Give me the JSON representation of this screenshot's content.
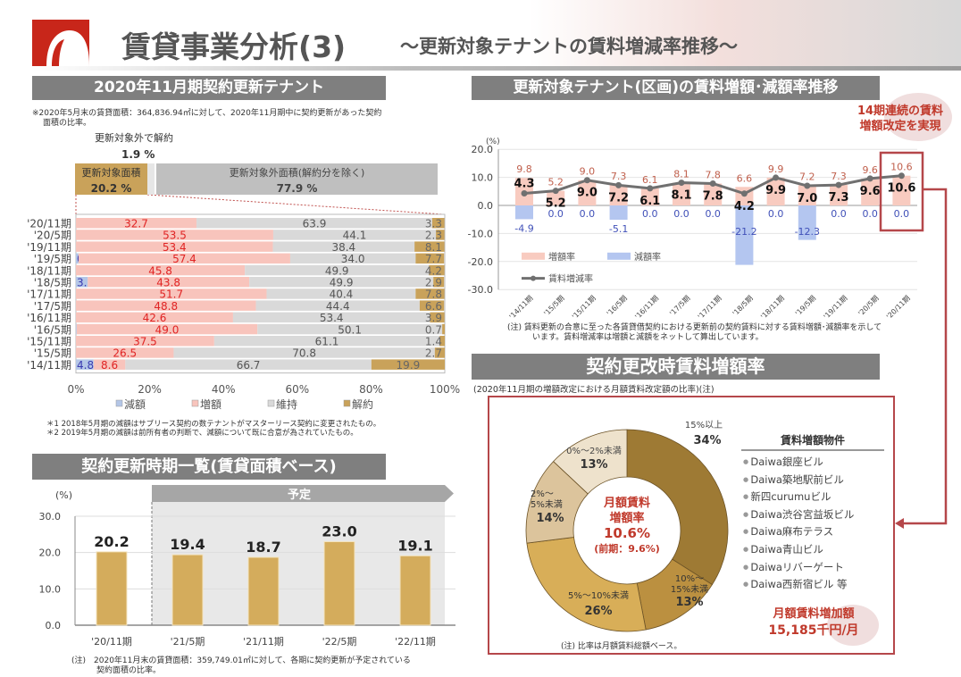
{
  "header": {
    "title": "賃貸事業分析(3)",
    "subtitle": "～更新対象テナントの賃料増減率推移～",
    "logo_color": "#c8261a"
  },
  "section_renewal": {
    "title": "2020年11月期契約更新テナント",
    "note_line1": "※2020年5月末の賃貸面積：364,836.94㎡に対して、2020年11月期中に契約更新があった契約",
    "note_line2": "面積の比率。",
    "cancel_label": "更新対象外で解約",
    "cancel_value": "1.9 %",
    "target_label": "更新対象面積",
    "target_value": "20.2 %",
    "other_label": "更新対象外面積(解約分を除く)",
    "other_value": "77.9 %",
    "footnote1": "＊1 2018年5月期の減額はサブリース契約の数テナントがマスターリース契約に変更されたもの。",
    "footnote2": "＊2 2019年5月期の減額は前所有者の判断で、減額について既に合意が為されていたもの。"
  },
  "section_trend": {
    "title": "更新対象テナント(区画)の賃料増額･減額率推移",
    "highlight_line1": "14期連続の賃料",
    "highlight_line2": "増額改定を実現",
    "note_line1": "(注) 賃料更新の合意に至った各賃貸借契約における更新前の契約賃料に対する賃料増額･減額率を示して",
    "note_line2": "います。賃料増減率は増額と減額をネットして算出しています。"
  },
  "section_schedule": {
    "title": "契約更新時期一覧(賃貸面積ベース)",
    "planned_label": "予定",
    "note_line1": "(注)　2020年11月末の賃貸面積：359,749.01㎡に対して、各期に契約更新が予定されている",
    "note_line2": "契約面積の比率。"
  },
  "section_increase": {
    "title": "契約更改時賃料増額率",
    "subtitle": "(2020年11月期の増額改定における月額賃料改定額の比率)(注)",
    "center_line1": "月額賃料",
    "center_line2": "増額率",
    "center_value": "10.6%",
    "center_prev": "(前期：9.6%)",
    "list_title": "賃料増額物件",
    "properties": [
      "Daiwa銀座ビル",
      "Daiwa築地駅前ビル",
      "新四curumuビル",
      "Daiwa渋谷宮益坂ビル",
      "Daiwa麻布テラス",
      "Daiwa青山ビル",
      "Daiwaリバーゲート",
      "Daiwa西新宿ビル 等"
    ],
    "amount_label": "月額賃料増加額",
    "amount_value": "15,185千円/月",
    "note": "(注) 比率は月額賃料総額ベース。"
  },
  "chart_data": [
    {
      "type": "bar",
      "orientation": "horizontal",
      "stacked": "percent",
      "categories": [
        "'20/11期",
        "'20/5期",
        "'19/11期",
        "'19/5期",
        "'18/11期",
        "'18/5期",
        "'17/11期",
        "'17/5期",
        "'16/11期",
        "'16/5期",
        "'15/11期",
        "'15/5期",
        "'14/11期"
      ],
      "series": [
        {
          "name": "減額",
          "color": "#b4c6e7",
          "label_color": "#3a3ab0",
          "values": [
            0,
            0,
            0,
            0.7,
            0,
            3.2,
            0,
            0,
            0,
            0.2,
            0,
            0,
            4.8
          ]
        },
        {
          "name": "増額",
          "color": "#f8c4bc",
          "label_color": "#e02424",
          "values": [
            32.7,
            53.5,
            53.4,
            57.4,
            45.8,
            43.8,
            51.7,
            48.8,
            42.6,
            49.0,
            37.5,
            26.5,
            8.6
          ]
        },
        {
          "name": "維持",
          "color": "#d9d9d9",
          "label_color": "#555555",
          "values": [
            63.9,
            44.1,
            38.4,
            34.0,
            49.9,
            49.9,
            40.4,
            44.4,
            53.4,
            50.1,
            61.1,
            70.8,
            66.7
          ]
        },
        {
          "name": "解約",
          "color": "#c9a25a",
          "label_color": "#666666",
          "values": [
            3.3,
            2.3,
            8.1,
            7.7,
            4.2,
            2.9,
            7.8,
            6.6,
            3.9,
            0.7,
            1.4,
            2.7,
            19.9
          ]
        }
      ],
      "markers": {
        "'19/5期": "＊2",
        "'18/5期": "＊1"
      },
      "xticks": [
        "0%",
        "20%",
        "40%",
        "60%",
        "80%",
        "100%"
      ],
      "xlim": [
        0,
        100
      ],
      "legend": "bottom"
    },
    {
      "type": "bar+line",
      "ylabel": "(%)",
      "ylim": [
        -30,
        20
      ],
      "yticks": [
        "20.0",
        "10.0",
        "0.0",
        "-10.0",
        "-20.0",
        "-30.0"
      ],
      "categories": [
        "'14/11期",
        "'15/5期",
        "'15/11期",
        "'16/5期",
        "'16/11期",
        "'17/5期",
        "'17/11期",
        "'18/5期",
        "'18/11期",
        "'19/5期",
        "'19/11期",
        "'20/5期",
        "'20/11期"
      ],
      "series": [
        {
          "name": "増額率",
          "type": "bar",
          "color": "#f8cbc0",
          "label_color": "#c0604d",
          "values": [
            9.8,
            5.2,
            9.0,
            7.3,
            6.1,
            8.1,
            7.8,
            6.6,
            9.9,
            7.2,
            7.3,
            9.6,
            10.6
          ],
          "labels": [
            "9.8",
            "5.2",
            "9.0",
            "7.3",
            "6.1",
            "8.1",
            "7.8",
            "6.6",
            "9.9",
            "7.2",
            "7.3",
            "9.6",
            "10.6"
          ]
        },
        {
          "name": "減額率",
          "type": "bar",
          "color": "#b4c6f0",
          "label_color": "#4050b8",
          "values": [
            -4.9,
            0,
            0,
            -5.1,
            0,
            0,
            0,
            -21.2,
            0,
            -12.3,
            0,
            0,
            0
          ],
          "labels": [
            "-4.9",
            "0.0",
            "0.0",
            "-5.1",
            "0.0",
            "0.0",
            "0.0",
            "-21.2",
            "0.0",
            "-12.3",
            "0.0",
            "0.0",
            "0.0"
          ]
        },
        {
          "name": "賃料増減率",
          "type": "line",
          "color": "#707070",
          "values": [
            4.3,
            5.2,
            9.0,
            7.2,
            6.1,
            8.1,
            7.8,
            4.2,
            9.9,
            7.0,
            7.3,
            9.6,
            10.6
          ],
          "labels": [
            "4.3",
            "5.2",
            "9.0",
            "7.2",
            "6.1",
            "8.1",
            "7.8",
            "4.2",
            "9.9",
            "7.0",
            "7.3",
            "9.6",
            "10.6"
          ]
        }
      ],
      "highlight_category": "'20/11期",
      "legend": "bottom-left"
    },
    {
      "type": "bar",
      "ylabel": "(%)",
      "ylim": [
        0,
        30
      ],
      "yticks": [
        "30.0",
        "20.0",
        "10.0",
        "0.0"
      ],
      "categories": [
        "'20/11期",
        "'21/5期",
        "'21/11期",
        "'22/5期",
        "'22/11期"
      ],
      "values": [
        20.2,
        19.4,
        18.7,
        23.0,
        19.1
      ],
      "labels": [
        "20.2",
        "19.4",
        "18.7",
        "23.0",
        "19.1"
      ],
      "color": "#d4ac5c",
      "planned_from": "'21/5期"
    },
    {
      "type": "pie",
      "donut": true,
      "slices": [
        {
          "label": "15%以上",
          "value": 34,
          "text": "34%",
          "color": "#9e7a34"
        },
        {
          "label": "10%～15%未満",
          "line1": "10%～",
          "line2": "15%未満",
          "value": 13,
          "text": "13%",
          "color": "#bb9040"
        },
        {
          "label": "5%～10%未満",
          "value": 26,
          "text": "26%",
          "color": "#d8ae58"
        },
        {
          "label": "2%～5%未満",
          "line1": "2%～",
          "line2": "5%未満",
          "value": 14,
          "text": "14%",
          "color": "#dcc49c"
        },
        {
          "label": "0%～2%未満",
          "value": 13,
          "text": "13%",
          "color": "#eee2cc"
        }
      ]
    }
  ]
}
